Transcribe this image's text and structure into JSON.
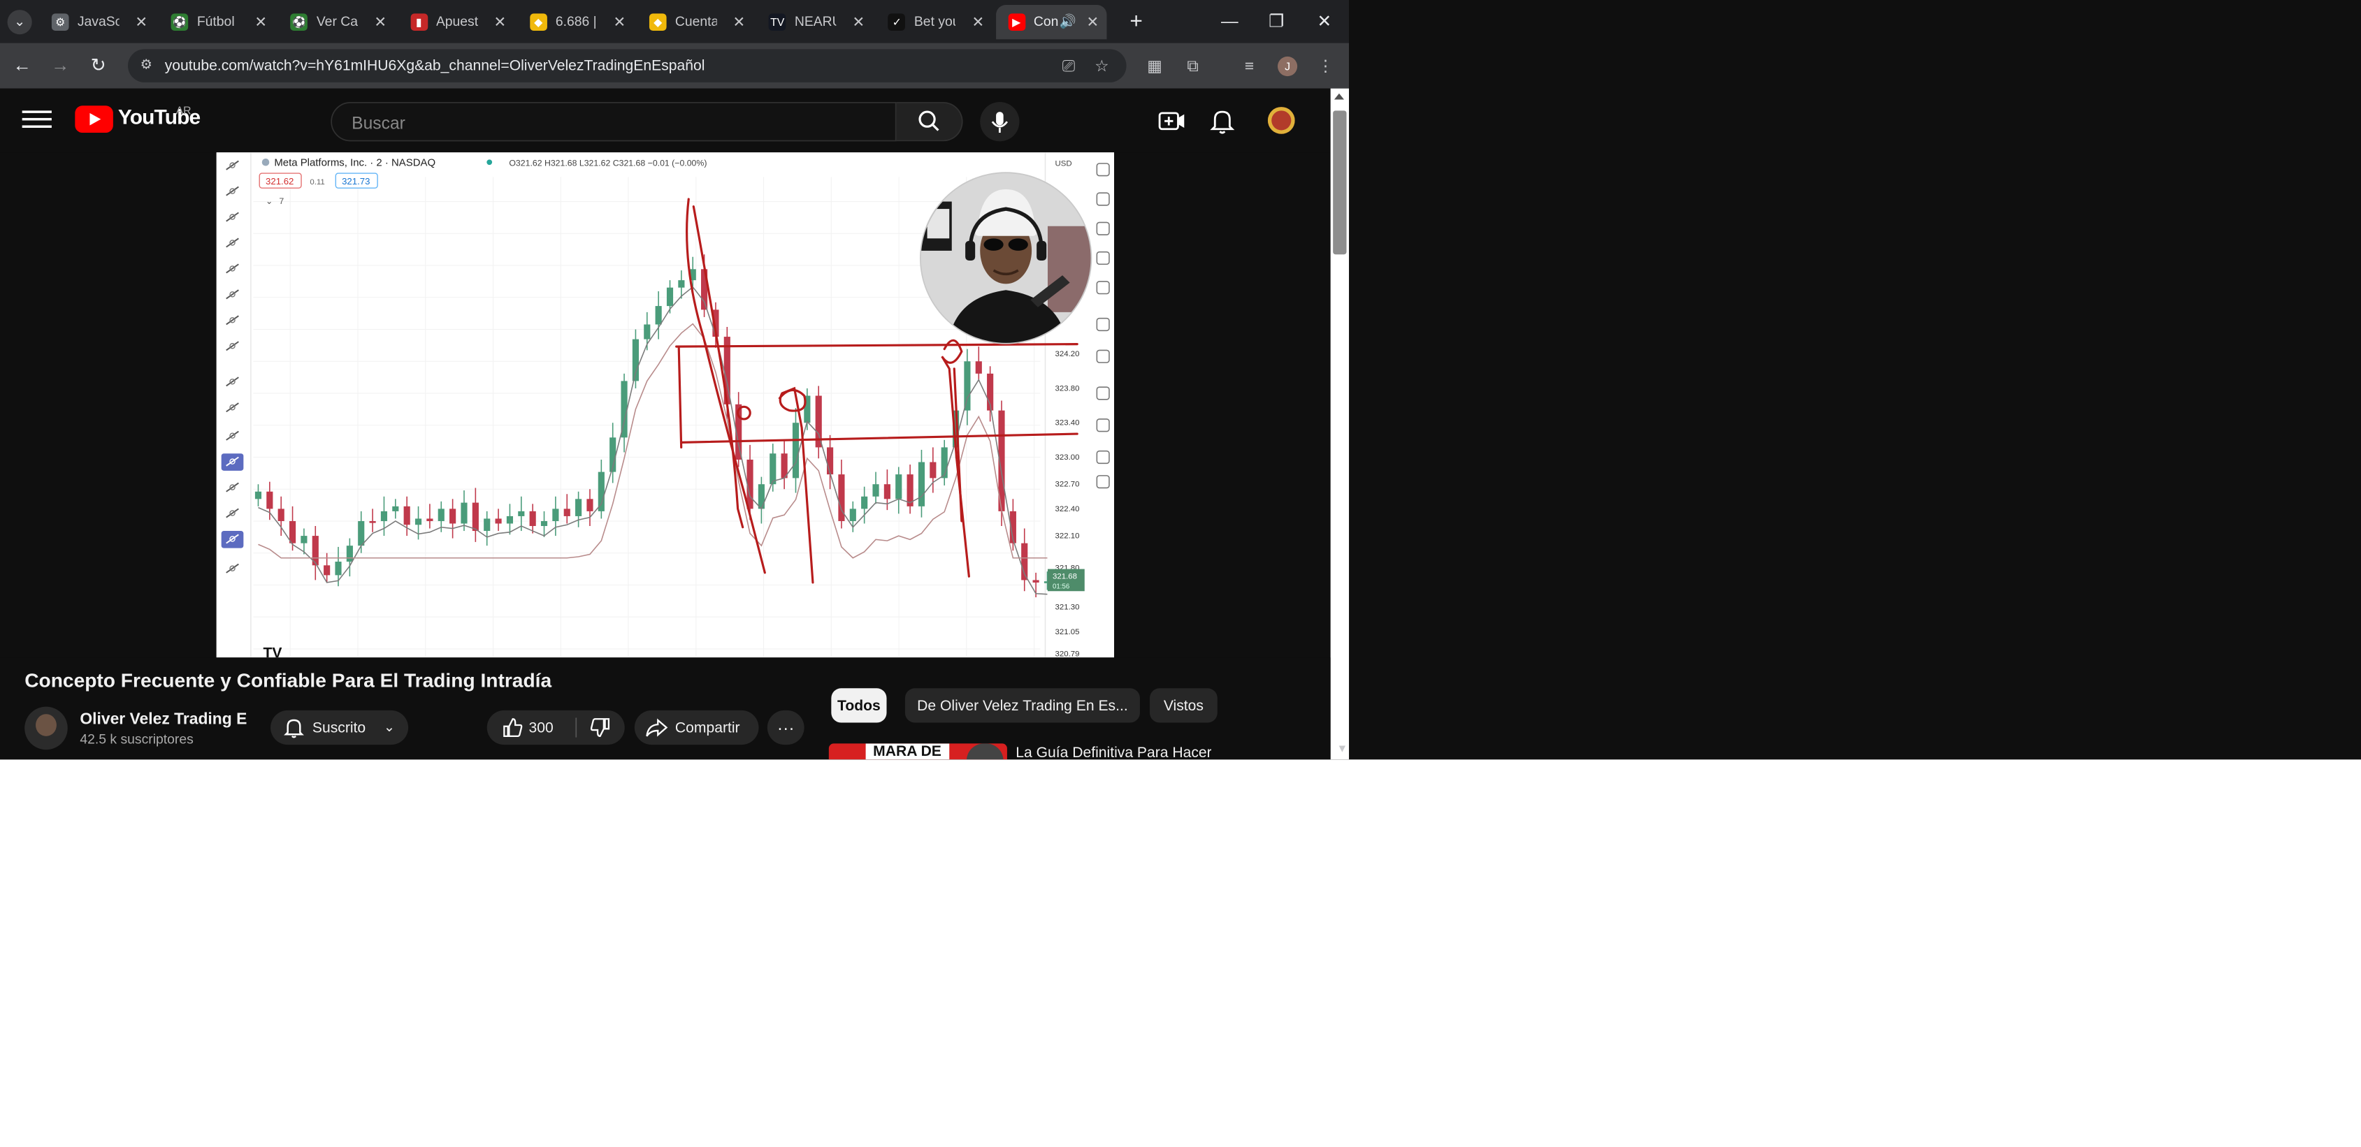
{
  "browser": {
    "tabs": [
      {
        "title": "JavaScri",
        "icon": "gear-globe-icon"
      },
      {
        "title": "Fútbol l",
        "icon": "soccer-icon"
      },
      {
        "title": "Ver Can",
        "icon": "soccer-icon"
      },
      {
        "title": "Apuesta",
        "icon": "betting-icon"
      },
      {
        "title": "6.686 |",
        "icon": "binance-icon"
      },
      {
        "title": "Cuenta",
        "icon": "binance-icon"
      },
      {
        "title": "NEARU",
        "icon": "tradingview-icon"
      },
      {
        "title": "Bet you",
        "icon": "swoosh-icon"
      },
      {
        "title": "Con",
        "icon": "youtube-icon"
      }
    ],
    "url": "youtube.com/watch?v=hY61mIHU6Xg&ab_channel=OliverVelezTradingEnEspañol",
    "profile_initial": "J"
  },
  "youtube": {
    "region": "AR",
    "wordmark": "YouTube",
    "search_placeholder": "Buscar"
  },
  "chart_overlay": {
    "symbol": "Meta Platforms, Inc. · 2 · NASDAQ",
    "ohlc": "O321.62 H321.68 L321.62 C321.68 −0.01 (−0.00%)",
    "bid": "321.62",
    "spread": "0.11",
    "ask": "321.73",
    "indicator_count": "7",
    "currency": "USD",
    "price_ticks": [
      "324.20",
      "323.80",
      "323.40",
      "323.00",
      "322.70",
      "322.40",
      "322.10",
      "321.80",
      "321.30",
      "321.05",
      "320.79"
    ],
    "last_price": "321.68",
    "countdown": "01:56",
    "logo": "TV"
  },
  "video": {
    "title": "Concepto Frecuente y Confiable Para El Trading Intradía",
    "channel": "Oliver Velez Trading E",
    "subscribers": "42.5 k suscriptores",
    "subscribe_label": "Suscrito",
    "likes": "300",
    "share_label": "Compartir"
  },
  "chips": [
    "Todos",
    "De Oliver Velez Trading En Es...",
    "Vistos"
  ],
  "recommendation": {
    "thumb_text": "MARA DE",
    "title": "La Guía Definitiva Para Hacer"
  }
}
